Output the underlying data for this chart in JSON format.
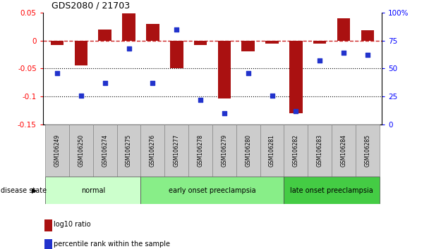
{
  "title": "GDS2080 / 21703",
  "samples": [
    "GSM106249",
    "GSM106250",
    "GSM106274",
    "GSM106275",
    "GSM106276",
    "GSM106277",
    "GSM106278",
    "GSM106279",
    "GSM106280",
    "GSM106281",
    "GSM106282",
    "GSM106283",
    "GSM106284",
    "GSM106285"
  ],
  "log10_ratio": [
    -0.008,
    -0.045,
    0.019,
    0.048,
    0.03,
    -0.05,
    -0.008,
    -0.104,
    -0.02,
    -0.005,
    -0.13,
    -0.005,
    0.04,
    0.018
  ],
  "pct_values": [
    46,
    26,
    37,
    68,
    37,
    85,
    22,
    10,
    46,
    26,
    12,
    57,
    64,
    62
  ],
  "group_labels": [
    "normal",
    "early onset preeclampsia",
    "late onset preeclampsia"
  ],
  "group_starts": [
    0,
    4,
    10
  ],
  "group_ends": [
    4,
    10,
    14
  ],
  "group_colors": [
    "#ccffcc",
    "#88ee88",
    "#44cc44"
  ],
  "ylim_left": [
    -0.15,
    0.05
  ],
  "ylim_right": [
    0,
    100
  ],
  "bar_color": "#aa1111",
  "dot_color": "#2233cc",
  "hline_color": "#cc2222",
  "legend_items": [
    "log10 ratio",
    "percentile rank within the sample"
  ],
  "disease_state_label": "disease state"
}
